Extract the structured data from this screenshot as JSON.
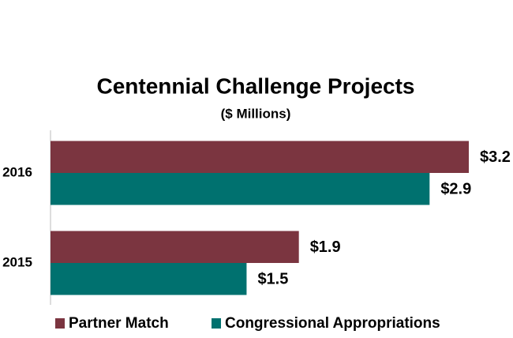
{
  "chart_data": {
    "type": "hbar",
    "title": "Centennial Challenge Projects",
    "subtitle": "($ Millions)",
    "categories": [
      "2016",
      "2015"
    ],
    "series": [
      {
        "name": "Partner Match",
        "color": "#7b3540",
        "values": [
          3.2,
          1.9
        ],
        "value_labels": [
          "$3.2",
          "$1.9"
        ]
      },
      {
        "name": "Congressional Appropriations",
        "color": "#00716f",
        "values": [
          2.9,
          1.5
        ],
        "value_labels": [
          "$2.9",
          "$1.5"
        ]
      }
    ],
    "legend": "bottom"
  }
}
